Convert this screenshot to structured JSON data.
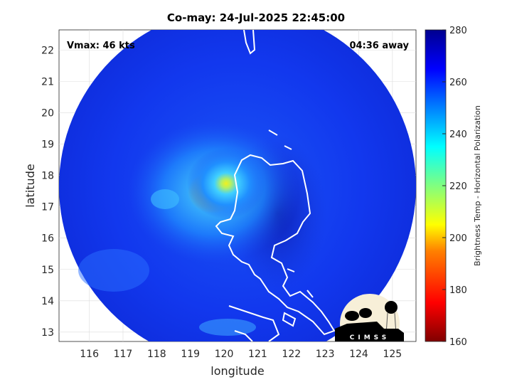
{
  "title": "Co-may: 24-Jul-2025 22:45:00",
  "vmax_label": "Vmax: 46 kts",
  "away_label": "04:36 away",
  "xlabel": "longitude",
  "ylabel": "latitude",
  "x_ticks": [
    "116",
    "117",
    "118",
    "119",
    "120",
    "121",
    "122",
    "123",
    "124",
    "125"
  ],
  "y_ticks": [
    "22",
    "21",
    "20",
    "19",
    "18",
    "17",
    "16",
    "15",
    "14",
    "13"
  ],
  "colorbar": {
    "label": "Brightness Temp - Horizontal Polarization",
    "ticks": [
      "280",
      "260",
      "240",
      "220",
      "200",
      "180",
      "160"
    ],
    "range": [
      160,
      280
    ],
    "colormap": [
      "#800000",
      "#ff0000",
      "#ff8000",
      "#ffff00",
      "#80ff80",
      "#00ffff",
      "#0080ff",
      "#0000ff",
      "#00008f"
    ]
  },
  "map": {
    "lon_range": [
      115.1,
      125.7
    ],
    "lat_range": [
      12.7,
      22.65
    ],
    "background_color": "#1a3cf0",
    "storm_center": {
      "lon": 120.0,
      "lat": 17.7
    }
  },
  "logo": {
    "text": "CIMSS"
  }
}
